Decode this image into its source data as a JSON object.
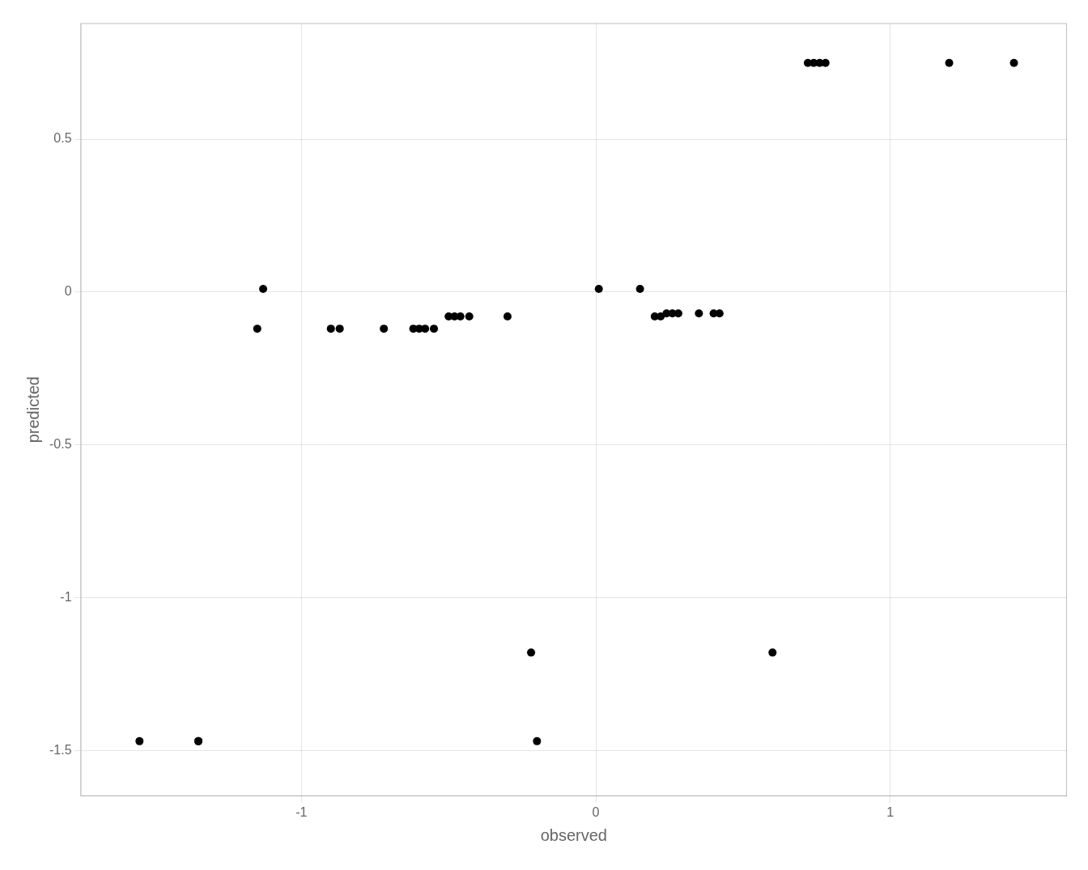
{
  "chart_data": {
    "type": "scatter",
    "x": [
      -1.55,
      -1.35,
      -1.35,
      -1.15,
      -1.13,
      -0.9,
      -0.87,
      -0.72,
      -0.62,
      -0.6,
      -0.58,
      -0.55,
      -0.5,
      -0.48,
      -0.46,
      -0.43,
      -0.3,
      -0.22,
      -0.2,
      0.01,
      0.15,
      0.2,
      0.22,
      0.24,
      0.26,
      0.28,
      0.35,
      0.4,
      0.42,
      0.6,
      0.72,
      0.74,
      0.76,
      0.78,
      1.2,
      1.42
    ],
    "values": [
      -1.47,
      -1.47,
      -1.47,
      -0.12,
      0.01,
      -0.12,
      -0.12,
      -0.12,
      -0.12,
      -0.12,
      -0.12,
      -0.12,
      -0.08,
      -0.08,
      -0.08,
      -0.08,
      -0.08,
      -1.18,
      -1.47,
      0.01,
      0.01,
      -0.08,
      -0.08,
      -0.07,
      -0.07,
      -0.07,
      -0.07,
      -0.07,
      -0.07,
      -1.18,
      0.75,
      0.75,
      0.75,
      0.75,
      0.75,
      0.75
    ],
    "color": "#000000",
    "xlim": [
      -1.75,
      1.6
    ],
    "ylim": [
      -1.65,
      0.88
    ],
    "xticks": [
      -1,
      0,
      1
    ],
    "yticks": [
      -1.5,
      -1,
      -0.5,
      0,
      0.5
    ],
    "xlabel": "observed",
    "ylabel": "predicted",
    "grid": true
  }
}
